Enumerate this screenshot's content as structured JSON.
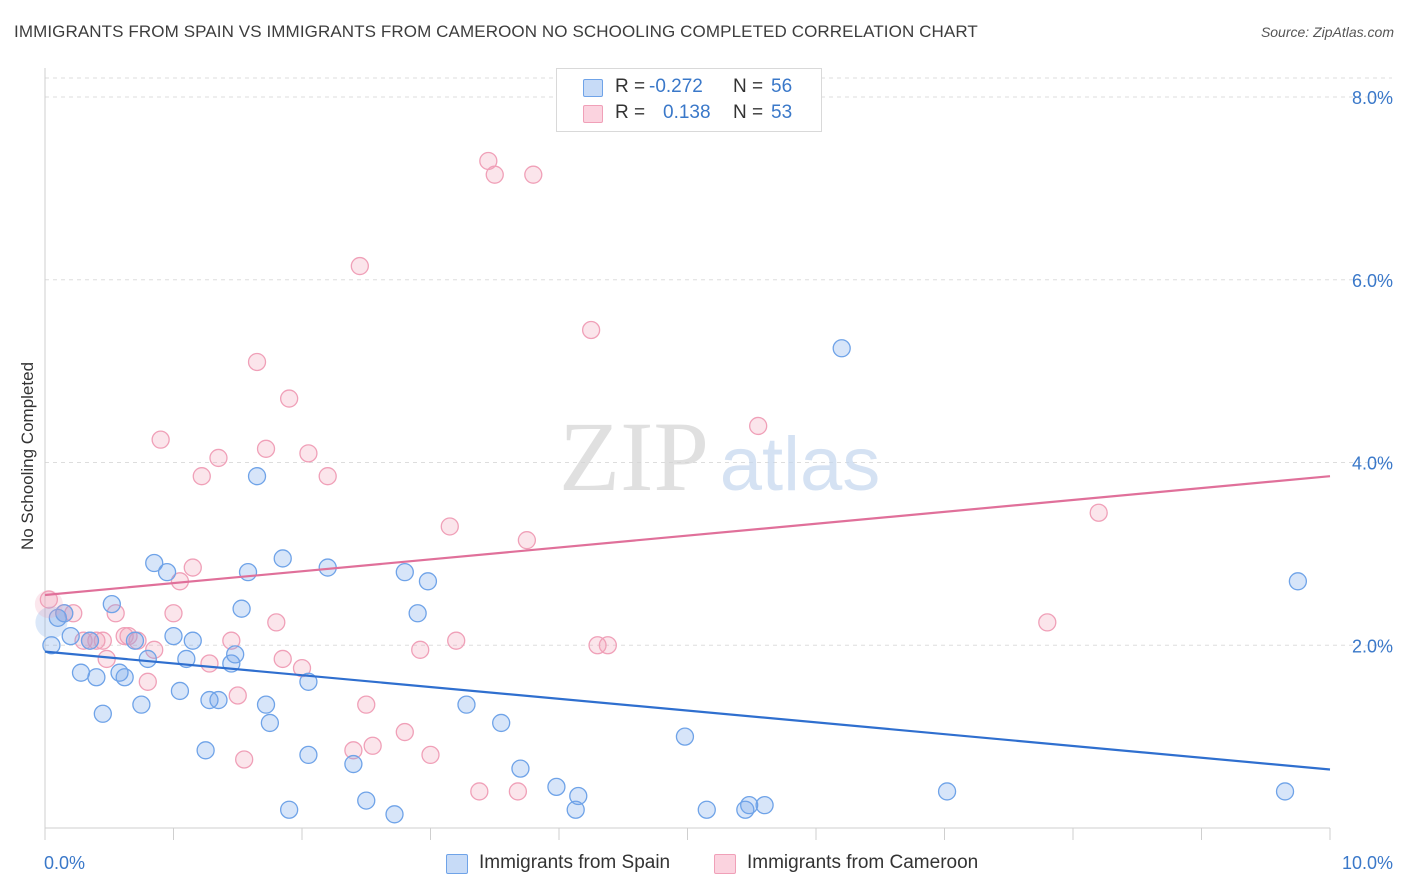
{
  "title": "IMMIGRANTS FROM SPAIN VS IMMIGRANTS FROM CAMEROON NO SCHOOLING COMPLETED CORRELATION CHART",
  "source": "Source: ZipAtlas.com",
  "watermark": {
    "zip": "ZIP",
    "atlas": "atlas"
  },
  "legend_box": {
    "rows": [
      {
        "r_label": "R =",
        "r_value": "-0.272",
        "n_label": "N =",
        "n_value": "56",
        "color": "#6fa3e8"
      },
      {
        "r_label": "R =",
        "r_value": "0.138",
        "n_label": "N =",
        "n_value": "53",
        "color": "#f0a0b8"
      }
    ]
  },
  "bottom_legend": [
    {
      "label": "Immigrants from Spain",
      "color": "#6fa3e8"
    },
    {
      "label": "Immigrants from Cameroon",
      "color": "#f0a0b8"
    }
  ],
  "chart_data": {
    "type": "scatter",
    "title": "IMMIGRANTS FROM SPAIN VS IMMIGRANTS FROM CAMEROON NO SCHOOLING COMPLETED CORRELATION CHART",
    "xlabel": "",
    "ylabel": "No Schooling Completed",
    "xlim": [
      0,
      10
    ],
    "ylim": [
      0,
      8.3
    ],
    "x_tick_labels": [
      "0.0%",
      "10.0%"
    ],
    "y_ticks": [
      2,
      4,
      6,
      8
    ],
    "y_tick_labels": [
      "2.0%",
      "4.0%",
      "6.0%",
      "8.0%"
    ],
    "grid": true,
    "legend_position": "top-center",
    "series": [
      {
        "name": "Immigrants from Spain",
        "color": "#6fa3e8",
        "trend": {
          "x": [
            0,
            10
          ],
          "y": [
            1.93,
            0.64
          ]
        },
        "points": [
          [
            0.05,
            2.0
          ],
          [
            0.1,
            2.3
          ],
          [
            0.15,
            2.35
          ],
          [
            0.2,
            2.1
          ],
          [
            0.28,
            1.7
          ],
          [
            0.35,
            2.05
          ],
          [
            0.4,
            1.65
          ],
          [
            0.45,
            1.25
          ],
          [
            0.52,
            2.45
          ],
          [
            0.58,
            1.7
          ],
          [
            0.62,
            1.65
          ],
          [
            0.7,
            2.05
          ],
          [
            0.75,
            1.35
          ],
          [
            0.8,
            1.85
          ],
          [
            0.85,
            2.9
          ],
          [
            0.95,
            2.8
          ],
          [
            1.0,
            2.1
          ],
          [
            1.05,
            1.5
          ],
          [
            1.1,
            1.85
          ],
          [
            1.15,
            2.05
          ],
          [
            1.25,
            0.85
          ],
          [
            1.28,
            1.4
          ],
          [
            1.35,
            1.4
          ],
          [
            1.45,
            1.8
          ],
          [
            1.48,
            1.9
          ],
          [
            1.53,
            2.4
          ],
          [
            1.58,
            2.8
          ],
          [
            1.65,
            3.85
          ],
          [
            1.72,
            1.35
          ],
          [
            1.75,
            1.15
          ],
          [
            1.85,
            2.95
          ],
          [
            1.9,
            0.2
          ],
          [
            2.05,
            1.6
          ],
          [
            2.05,
            0.8
          ],
          [
            2.2,
            2.85
          ],
          [
            2.4,
            0.7
          ],
          [
            2.5,
            0.3
          ],
          [
            2.72,
            0.15
          ],
          [
            2.8,
            2.8
          ],
          [
            2.9,
            2.35
          ],
          [
            2.98,
            2.7
          ],
          [
            3.28,
            1.35
          ],
          [
            3.55,
            1.15
          ],
          [
            3.7,
            0.65
          ],
          [
            3.98,
            0.45
          ],
          [
            4.13,
            0.2
          ],
          [
            4.15,
            0.35
          ],
          [
            4.98,
            1.0
          ],
          [
            5.15,
            0.2
          ],
          [
            5.45,
            0.2
          ],
          [
            5.48,
            0.25
          ],
          [
            5.6,
            0.25
          ],
          [
            6.2,
            5.25
          ],
          [
            7.02,
            0.4
          ],
          [
            9.65,
            0.4
          ],
          [
            9.75,
            2.7
          ]
        ]
      },
      {
        "name": "Immigrants from Cameroon",
        "color": "#f0a0b8",
        "trend": {
          "x": [
            0,
            10
          ],
          "y": [
            2.55,
            3.85
          ]
        },
        "points": [
          [
            0.03,
            2.5
          ],
          [
            0.15,
            2.35
          ],
          [
            0.22,
            2.35
          ],
          [
            0.3,
            2.05
          ],
          [
            0.35,
            2.05
          ],
          [
            0.4,
            2.05
          ],
          [
            0.45,
            2.05
          ],
          [
            0.48,
            1.85
          ],
          [
            0.55,
            2.35
          ],
          [
            0.62,
            2.1
          ],
          [
            0.65,
            2.1
          ],
          [
            0.72,
            2.05
          ],
          [
            0.8,
            1.6
          ],
          [
            0.85,
            1.95
          ],
          [
            0.9,
            4.25
          ],
          [
            1.0,
            2.35
          ],
          [
            1.05,
            2.7
          ],
          [
            1.15,
            2.85
          ],
          [
            1.22,
            3.85
          ],
          [
            1.28,
            1.8
          ],
          [
            1.35,
            4.05
          ],
          [
            1.45,
            2.05
          ],
          [
            1.5,
            1.45
          ],
          [
            1.55,
            0.75
          ],
          [
            1.65,
            5.1
          ],
          [
            1.72,
            4.15
          ],
          [
            1.8,
            2.25
          ],
          [
            1.85,
            1.85
          ],
          [
            1.9,
            4.7
          ],
          [
            2.0,
            1.75
          ],
          [
            2.05,
            4.1
          ],
          [
            2.2,
            3.85
          ],
          [
            2.4,
            0.85
          ],
          [
            2.45,
            6.15
          ],
          [
            2.5,
            1.35
          ],
          [
            2.55,
            0.9
          ],
          [
            2.8,
            1.05
          ],
          [
            2.92,
            1.95
          ],
          [
            3.0,
            0.8
          ],
          [
            3.15,
            3.3
          ],
          [
            3.2,
            2.05
          ],
          [
            3.38,
            0.4
          ],
          [
            3.45,
            7.3
          ],
          [
            3.5,
            7.15
          ],
          [
            3.68,
            0.4
          ],
          [
            3.75,
            3.15
          ],
          [
            3.8,
            7.15
          ],
          [
            4.25,
            5.45
          ],
          [
            4.3,
            2.0
          ],
          [
            4.38,
            2.0
          ],
          [
            5.55,
            4.4
          ],
          [
            7.8,
            2.25
          ],
          [
            8.2,
            3.45
          ]
        ]
      }
    ]
  }
}
